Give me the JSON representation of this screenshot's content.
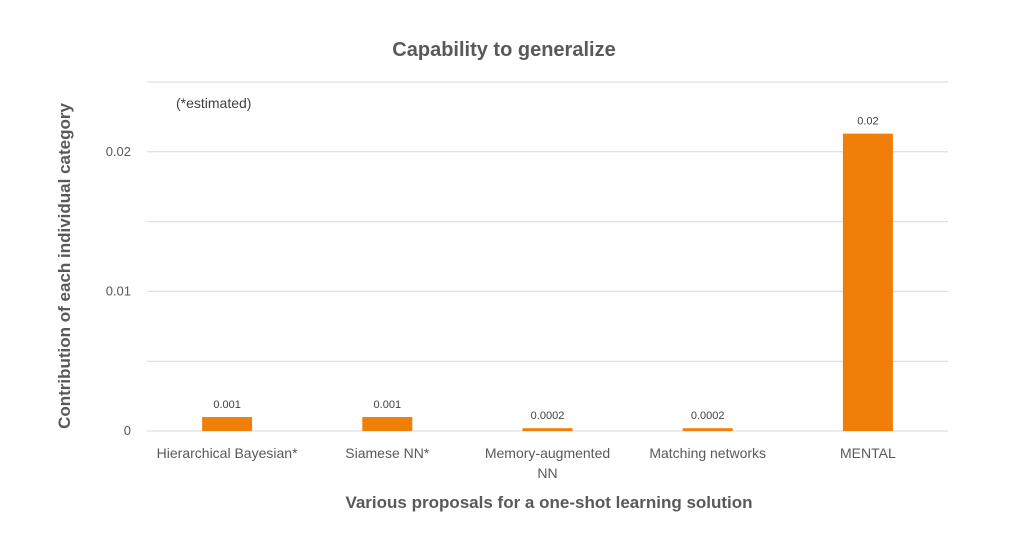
{
  "chart_data": {
    "type": "bar",
    "title": "Capability to generalize",
    "note": "(*estimated)",
    "xlabel": "Various proposals for a one-shot learning solution",
    "ylabel": "Contribution of each individual category",
    "categories": [
      [
        "Hierarchical Bayesian*"
      ],
      [
        "Siamese NN*"
      ],
      [
        "Memory-augmented",
        "NN"
      ],
      [
        "Matching networks"
      ],
      [
        "MENTAL"
      ]
    ],
    "values": [
      0.001,
      0.001,
      0.0002,
      0.0002,
      0.0213
    ],
    "data_labels": [
      "0.001",
      "0.001",
      "0.0002",
      "0.0002",
      "0.02"
    ],
    "yticks": [
      {
        "value": 0,
        "label": "0"
      },
      {
        "value": 0.01,
        "label": "0.01"
      },
      {
        "value": 0.02,
        "label": "0.02"
      }
    ],
    "ylim": [
      0,
      0.025
    ],
    "grid": true,
    "gridline_values": [
      0,
      0.005,
      0.01,
      0.015,
      0.02,
      0.025
    ],
    "colors": {
      "bar": "#F07F09",
      "grid": "#D9D9D9",
      "text": "#595959"
    }
  }
}
